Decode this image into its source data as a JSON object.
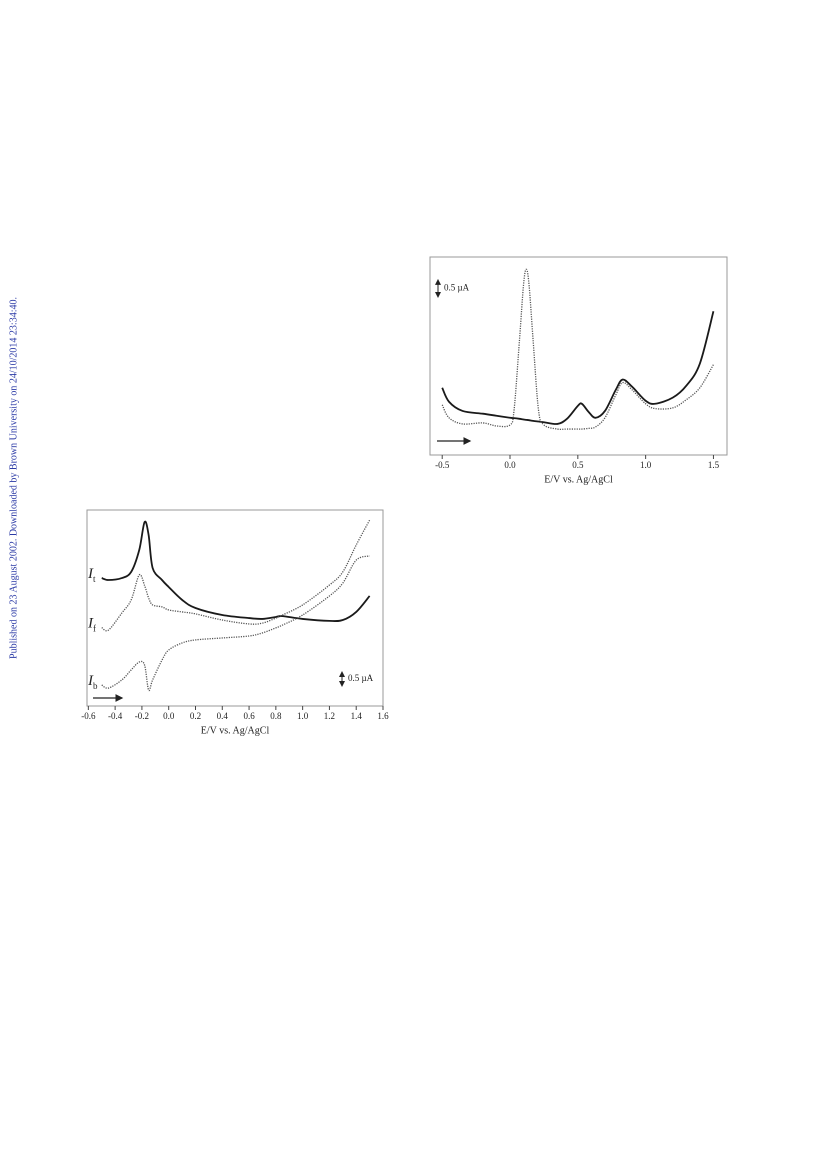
{
  "sidebar": "Published on 23 August 2002. Downloaded by Brown University on 24/10/2014 23:34:40.",
  "chart_data": [
    {
      "type": "line",
      "x_label": "E/V vs. Ag/AgCl",
      "xlim": [
        -0.59,
        1.6
      ],
      "xticks": [
        -0.5,
        {
          "value": 0,
          "label": "0.0"
        },
        0.5,
        {
          "value": 1,
          "label": "1.0"
        },
        1.5
      ],
      "ylim": [
        0,
        5.8
      ],
      "scale_bar": {
        "value": 0.5,
        "label": "0.5 µA"
      },
      "x": [
        -0.5,
        -0.45,
        -0.35,
        -0.2,
        -0.1,
        0.0,
        0.03,
        0.07,
        0.1,
        0.12,
        0.14,
        0.17,
        0.21,
        0.25,
        0.35,
        0.42,
        0.5,
        0.53,
        0.58,
        0.63,
        0.7,
        0.78,
        0.83,
        0.9,
        1.0,
        1.07,
        1.2,
        1.3,
        1.4,
        1.5
      ],
      "series": [
        {
          "color": "#1a1a1a",
          "style": "solid",
          "values": [
            1.97,
            1.56,
            1.29,
            1.21,
            1.15,
            1.09,
            1.08,
            1.06,
            1.04,
            1.03,
            1.02,
            1.0,
            0.98,
            0.96,
            0.91,
            1.06,
            1.44,
            1.5,
            1.26,
            1.09,
            1.29,
            1.91,
            2.21,
            2.0,
            1.59,
            1.5,
            1.68,
            2.03,
            2.68,
            4.21
          ]
        },
        {
          "color": "#555555",
          "style": "dotted",
          "values": [
            1.47,
            1.09,
            0.91,
            0.94,
            0.85,
            0.88,
            1.32,
            3.38,
            5.0,
            5.44,
            5.0,
            3.38,
            1.32,
            0.88,
            0.76,
            0.76,
            0.76,
            0.76,
            0.78,
            0.82,
            1.09,
            1.76,
            2.12,
            1.91,
            1.5,
            1.36,
            1.38,
            1.62,
            1.97,
            2.65
          ]
        }
      ]
    },
    {
      "type": "line",
      "x_label": "E/V vs. Ag/AgCl",
      "xlim": [
        -0.61,
        1.6
      ],
      "xticks": [
        -0.6,
        -0.4,
        -0.2,
        {
          "value": 0,
          "label": "0.0"
        },
        0.2,
        0.4,
        0.6,
        0.8,
        {
          "value": 1,
          "label": "1.0"
        },
        1.2,
        1.4,
        1.6
      ],
      "ylim": [
        0,
        7.0
      ],
      "scale_bar": {
        "value": 0.5,
        "label": "0.5 µA"
      },
      "x": [
        -0.5,
        -0.45,
        -0.35,
        -0.28,
        -0.22,
        -0.18,
        -0.15,
        -0.12,
        -0.05,
        0.0,
        0.1,
        0.2,
        0.4,
        0.6,
        0.7,
        0.8,
        0.85,
        1.0,
        1.2,
        1.3,
        1.4,
        1.5
      ],
      "series": [
        {
          "name": "I",
          "subscript": "t",
          "color": "#1a1a1a",
          "style": "solid",
          "values": [
            4.57,
            4.5,
            4.57,
            4.79,
            5.57,
            6.57,
            6.11,
            4.93,
            4.5,
            4.25,
            3.79,
            3.5,
            3.25,
            3.14,
            3.11,
            3.18,
            3.21,
            3.11,
            3.04,
            3.07,
            3.36,
            3.93
          ]
        },
        {
          "name": "I",
          "subscript": "f",
          "color": "#555555",
          "style": "dotted",
          "values": [
            2.8,
            2.71,
            3.32,
            3.79,
            4.68,
            4.3,
            3.86,
            3.61,
            3.54,
            3.43,
            3.36,
            3.29,
            3.07,
            2.93,
            2.96,
            3.14,
            3.25,
            3.61,
            4.32,
            4.79,
            5.75,
            6.64
          ]
        },
        {
          "name": "I",
          "subscript": "b",
          "color": "#555555",
          "style": "dotted",
          "values": [
            0.75,
            0.64,
            0.93,
            1.29,
            1.57,
            1.46,
            0.57,
            0.93,
            1.64,
            2.0,
            2.25,
            2.36,
            2.43,
            2.5,
            2.61,
            2.79,
            2.89,
            3.25,
            3.93,
            4.39,
            5.21,
            5.36
          ]
        }
      ]
    }
  ]
}
